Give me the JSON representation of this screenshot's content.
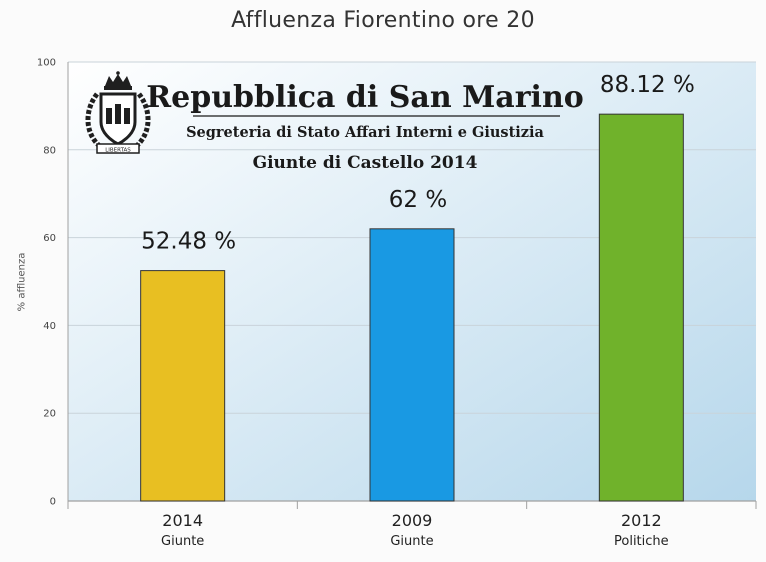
{
  "chart_data": {
    "type": "bar",
    "title": "Affluenza Fiorentino ore 20",
    "ylabel": "% affluenza",
    "xlabel": "",
    "ylim": [
      0,
      100
    ],
    "yticks": [
      0,
      20,
      40,
      60,
      80,
      100
    ],
    "grid": true,
    "categories": [
      "2014",
      "2009",
      "2012"
    ],
    "subcategories": [
      "Giunte",
      "Giunte",
      "Politiche"
    ],
    "values": [
      52.48,
      62,
      88.12
    ],
    "data_labels": [
      "52.48 %",
      "62 %",
      "88.12 %"
    ],
    "bar_colors": [
      "#e8bf22",
      "#1999e3",
      "#70b22b"
    ]
  },
  "watermark": {
    "title": "Repubblica di San Marino",
    "subtitle": "Segreteria di Stato Affari Interni e Giustizia",
    "caption": "Giunte di Castello 2014",
    "emblem_motto": "LIBERTAS",
    "emblem_icon": "san-marino-coat-of-arms-icon"
  },
  "colors": {
    "plot_bg_start": "#ffffff",
    "plot_bg_end": "#b6d7eb",
    "grid": "#c9d3da",
    "axis": "#a0a0a0"
  }
}
